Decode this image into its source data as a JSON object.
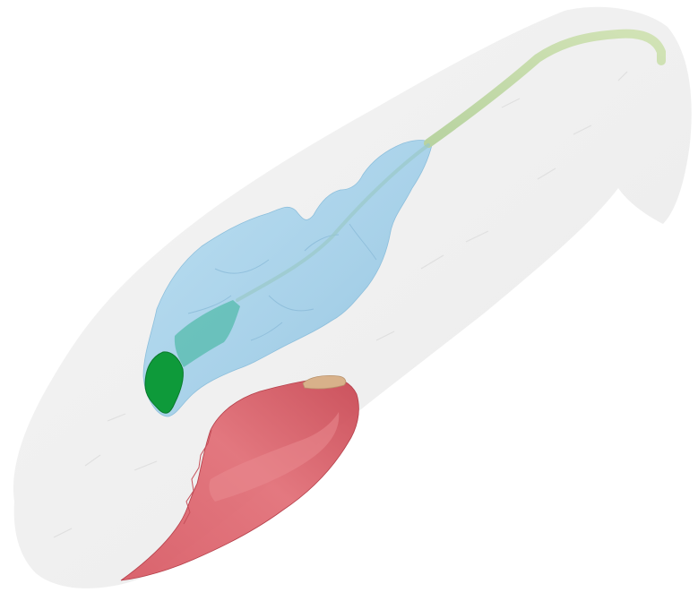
{
  "scene": {
    "background": "#ffffff",
    "structures": [
      {
        "id": "outer-shell",
        "color": "#ededed",
        "opacity": 0.85
      },
      {
        "id": "blue-organ",
        "color": "#a7d3ec",
        "opacity": 0.9
      },
      {
        "id": "green-tube",
        "color": "#c9ddaa",
        "opacity": 0.95
      },
      {
        "id": "teal-segment",
        "color": "#4fb9a8",
        "opacity": 0.75
      },
      {
        "id": "dark-green-cap",
        "color": "#0e9a3a",
        "opacity": 1
      },
      {
        "id": "red-muscle",
        "color": "#e06a72",
        "opacity": 0.95
      },
      {
        "id": "tan-tip",
        "color": "#d8b18a",
        "opacity": 1
      }
    ]
  }
}
